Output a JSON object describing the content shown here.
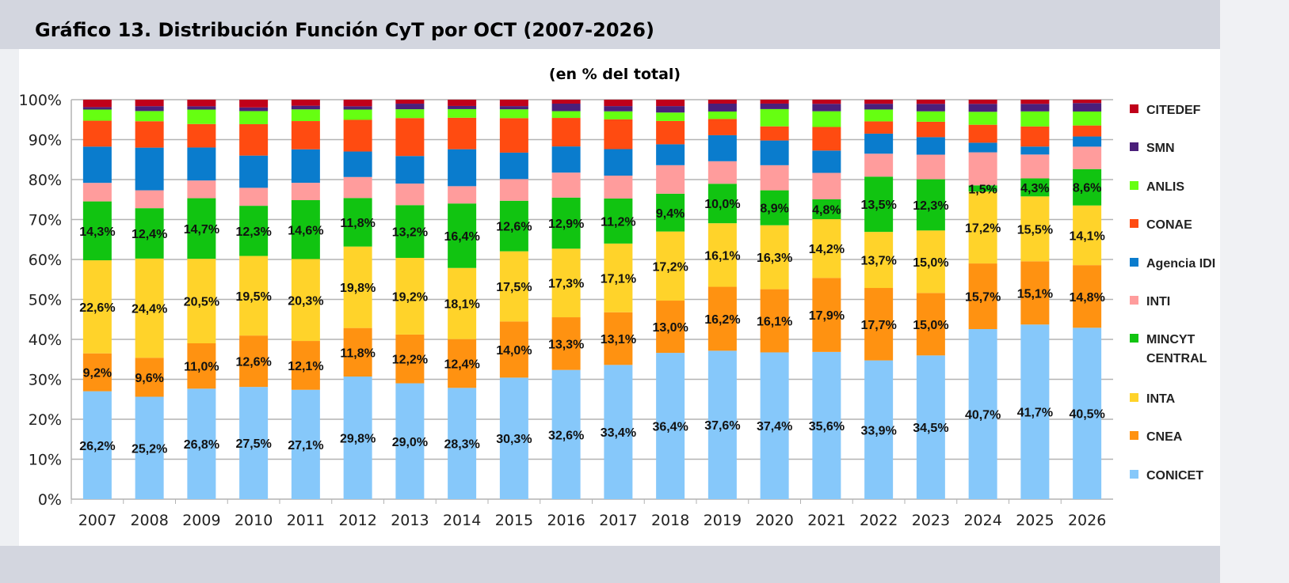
{
  "header": {
    "title": "Gráfico 13. Distribución Función CyT por OCT (2007-2026)"
  },
  "chart_data": {
    "type": "bar",
    "stacked": true,
    "subtitle": "(en % del total)",
    "xlabel": "",
    "ylabel": "",
    "ylim": [
      0,
      100
    ],
    "y_ticks": [
      "0%",
      "10%",
      "20%",
      "30%",
      "40%",
      "50%",
      "60%",
      "70%",
      "80%",
      "90%",
      "100%"
    ],
    "grid": true,
    "legend_position": "right",
    "categories": [
      "2007",
      "2008",
      "2009",
      "2010",
      "2011",
      "2012",
      "2013",
      "2014",
      "2015",
      "2016",
      "2017",
      "2018",
      "2019",
      "2020",
      "2021",
      "2022",
      "2023",
      "2024",
      "2025",
      "2026"
    ],
    "series": [
      {
        "name": "CONICET",
        "color": "#86c8fa",
        "labeled": true,
        "values": [
          26.2,
          25.2,
          26.8,
          27.5,
          27.1,
          29.8,
          29.0,
          28.3,
          30.3,
          32.6,
          33.4,
          36.4,
          37.6,
          37.4,
          35.6,
          33.9,
          34.5,
          40.7,
          41.7,
          40.5
        ]
      },
      {
        "name": "CNEA",
        "color": "#ff9211",
        "labeled": true,
        "values": [
          9.2,
          9.6,
          11.0,
          12.6,
          12.1,
          11.8,
          12.2,
          12.4,
          14.0,
          13.3,
          13.1,
          13.0,
          16.2,
          16.1,
          17.9,
          17.7,
          15.0,
          15.7,
          15.1,
          14.8
        ]
      },
      {
        "name": "INTA",
        "color": "#ffd32a",
        "labeled": true,
        "values": [
          22.6,
          24.4,
          20.5,
          19.5,
          20.3,
          19.8,
          19.2,
          18.1,
          17.5,
          17.3,
          17.1,
          17.2,
          16.1,
          16.3,
          14.2,
          13.7,
          15.0,
          17.2,
          15.5,
          14.1
        ]
      },
      {
        "name": "MINCYT CENTRAL",
        "color": "#11c411",
        "labeled": true,
        "values": [
          14.3,
          12.4,
          14.7,
          12.3,
          14.6,
          11.8,
          13.2,
          16.4,
          12.6,
          12.9,
          11.2,
          9.4,
          10.0,
          8.9,
          4.8,
          13.5,
          12.3,
          1.5,
          4.3,
          8.6
        ]
      },
      {
        "name": "INTI",
        "color": "#ff9c9c",
        "labeled": false,
        "values": [
          4.5,
          4.4,
          4.3,
          4.4,
          4.3,
          5.1,
          5.4,
          4.4,
          5.4,
          6.3,
          5.7,
          7.1,
          5.7,
          6.4,
          6.4,
          5.6,
          5.9,
          7.9,
          5.7,
          5.3
        ]
      },
      {
        "name": "Agencia IDI",
        "color": "#0a7ccd",
        "labeled": false,
        "values": [
          8.8,
          10.5,
          8.0,
          7.9,
          8.3,
          6.2,
          6.9,
          9.4,
          6.6,
          6.6,
          6.6,
          5.2,
          6.6,
          6.3,
          5.4,
          4.9,
          4.2,
          2.3,
          1.9,
          2.4
        ]
      },
      {
        "name": "CONAE",
        "color": "#ff4b11",
        "labeled": false,
        "values": [
          6.3,
          6.5,
          5.7,
          7.7,
          7.0,
          7.7,
          9.5,
          8.0,
          8.6,
          7.2,
          7.4,
          5.8,
          4.1,
          3.6,
          5.7,
          3.0,
          3.7,
          4.3,
          4.8,
          2.6
        ]
      },
      {
        "name": "ANLIS",
        "color": "#66ff11",
        "labeled": false,
        "values": [
          2.7,
          2.5,
          3.5,
          3.2,
          2.9,
          2.5,
          2.2,
          2.2,
          2.2,
          1.7,
          2.0,
          2.1,
          1.9,
          4.4,
          3.8,
          2.9,
          2.5,
          3.1,
          3.6,
          3.3
        ]
      },
      {
        "name": "SMN",
        "color": "#4b1f7a",
        "labeled": false,
        "values": [
          0.6,
          1.2,
          0.8,
          0.9,
          0.9,
          0.8,
          1.4,
          0.8,
          0.8,
          1.9,
          1.3,
          1.6,
          2.0,
          1.4,
          1.8,
          1.4,
          1.8,
          1.9,
          1.8,
          2.0
        ]
      },
      {
        "name": "CITEDEF",
        "color": "#c0001a",
        "labeled": false,
        "values": [
          1.8,
          1.6,
          1.6,
          1.9,
          1.5,
          1.6,
          1.0,
          1.6,
          1.6,
          1.0,
          1.6,
          1.6,
          1.0,
          1.0,
          1.0,
          1.0,
          1.0,
          1.0,
          1.0,
          0.8
        ]
      }
    ],
    "value_labels_suffix": "%",
    "decimal_separator": ","
  }
}
